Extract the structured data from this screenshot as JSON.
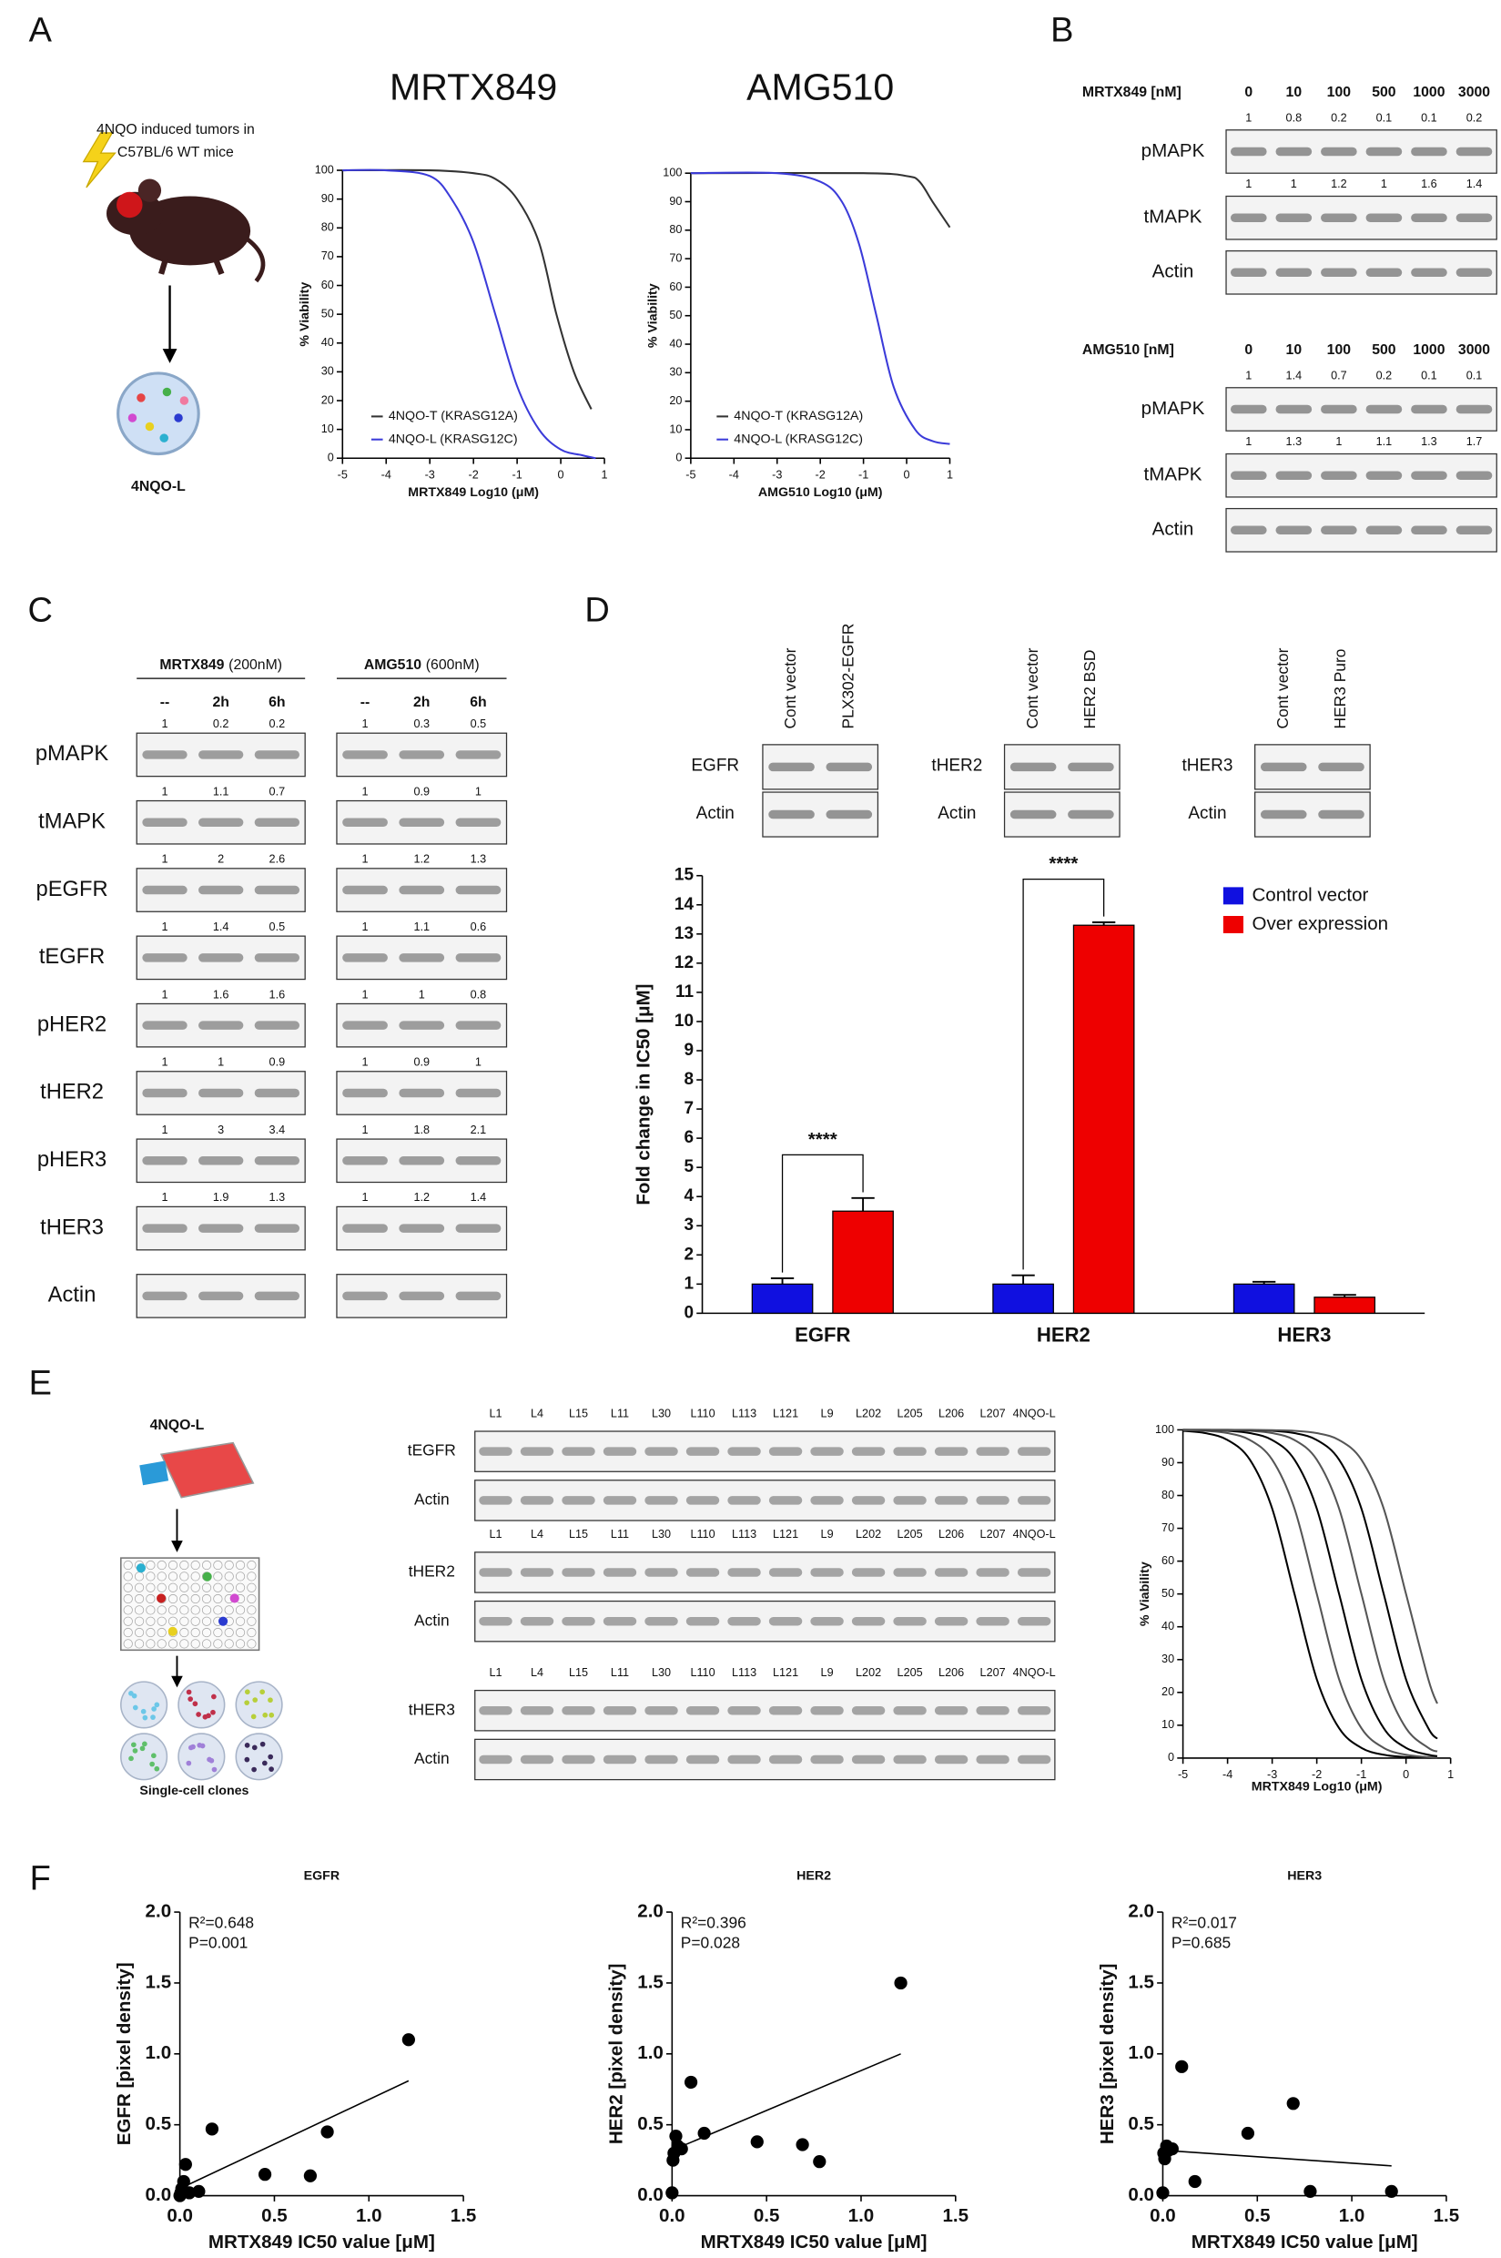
{
  "panel_labels": [
    "A",
    "B",
    "C",
    "D",
    "E",
    "F"
  ],
  "panel_a": {
    "model_text": [
      "4NQO induced tumors  in",
      "C57BL/6 WT mice"
    ],
    "cell_line": "4NQO-L"
  },
  "panel_b": {
    "blots": [
      {
        "drug": "MRTX849 [nM]",
        "doses": [
          0,
          10,
          100,
          500,
          1000,
          3000
        ],
        "rows": [
          {
            "label": "pMAPK",
            "quant": [
              1,
              0.8,
              0.2,
              0.1,
              0.1,
              0.2
            ]
          },
          {
            "label": "tMAPK",
            "quant": [
              1,
              1,
              1.2,
              1,
              1.6,
              1.4
            ]
          },
          {
            "label": "Actin"
          }
        ]
      },
      {
        "drug": "AMG510 [nM]",
        "doses": [
          0,
          10,
          100,
          500,
          1000,
          3000
        ],
        "rows": [
          {
            "label": "pMAPK",
            "quant": [
              1,
              1.4,
              0.7,
              0.2,
              0.1,
              0.1
            ]
          },
          {
            "label": "tMAPK",
            "quant": [
              1,
              1.3,
              1,
              1.1,
              1.3,
              1.7
            ]
          },
          {
            "label": "Actin"
          }
        ]
      }
    ]
  },
  "panel_c": {
    "treatments": [
      {
        "drug": "MRTX849",
        "dose": "(200nM)"
      },
      {
        "drug": "AMG510",
        "dose": "(600nM)"
      }
    ],
    "columns": [
      "--",
      "2h",
      "6h"
    ],
    "rows": [
      {
        "label": "pMAPK",
        "quant": [
          [
            1,
            0.2,
            0.2
          ],
          [
            1,
            0.3,
            0.5
          ]
        ]
      },
      {
        "label": "tMAPK",
        "quant": [
          [
            1,
            1.1,
            0.7
          ],
          [
            1,
            0.9,
            1
          ]
        ]
      },
      {
        "label": "pEGFR",
        "quant": [
          [
            1,
            2,
            2.6
          ],
          [
            1,
            1.2,
            1.3
          ]
        ]
      },
      {
        "label": "tEGFR",
        "quant": [
          [
            1,
            1.4,
            0.5
          ],
          [
            1,
            1.1,
            0.6
          ]
        ]
      },
      {
        "label": "pHER2",
        "quant": [
          [
            1,
            1.6,
            1.6
          ],
          [
            1,
            1,
            0.8
          ]
        ]
      },
      {
        "label": "tHER2",
        "quant": [
          [
            1,
            1,
            0.9
          ],
          [
            1,
            0.9,
            1
          ]
        ]
      },
      {
        "label": "pHER3",
        "quant": [
          [
            1,
            3,
            3.4
          ],
          [
            1,
            1.8,
            2.1
          ]
        ]
      },
      {
        "label": "tHER3",
        "quant": [
          [
            1,
            1.9,
            1.3
          ],
          [
            1,
            1.2,
            1.4
          ]
        ]
      },
      {
        "label": "Actin"
      }
    ]
  },
  "panel_d_blots": [
    {
      "lanes": [
        "Cont vector",
        "PLX302-EGFR"
      ],
      "rows": [
        "EGFR",
        "Actin"
      ]
    },
    {
      "lanes": [
        "Cont vector",
        "HER2 BSD"
      ],
      "rows": [
        "tHER2",
        "Actin"
      ]
    },
    {
      "lanes": [
        "Cont vector",
        "HER3 Puro"
      ],
      "rows": [
        "tHER3",
        "Actin"
      ]
    }
  ],
  "panel_e": {
    "title": "4NQO-L",
    "caption": "Single-cell clones",
    "lanes": [
      "L1",
      "L4",
      "L15",
      "L11",
      "L30",
      "L110",
      "L113",
      "L121",
      "L9",
      "L202",
      "L205",
      "L206",
      "L207",
      "4NQO-L"
    ],
    "blots": [
      [
        "tEGFR",
        "Actin"
      ],
      [
        "tHER2",
        "Actin"
      ],
      [
        "tHER3",
        "Actin"
      ]
    ]
  },
  "chart_data": [
    {
      "type": "line",
      "title": "MRTX849",
      "x_label": "MRTX849 Log10 (μM)",
      "y_label": "% Viability",
      "xlim": [
        -5,
        1
      ],
      "xticks": [
        -5,
        -4,
        -3,
        -2,
        -1,
        0,
        1
      ],
      "ylim": [
        0,
        100
      ],
      "yticks": [
        0,
        10,
        20,
        30,
        40,
        50,
        60,
        70,
        80,
        90,
        100
      ],
      "legend": "lower left",
      "series": [
        {
          "name": "4NQO-T (KRASG12A)",
          "color": "#333333",
          "x": [
            -5,
            -3,
            -2,
            -1.5,
            -1,
            -0.5,
            -0.1,
            0.3,
            0.7
          ],
          "values": [
            100,
            100,
            99,
            97,
            90,
            75,
            50,
            30,
            17
          ]
        },
        {
          "name": "4NQO-L (KRASG12C)",
          "color": "#3b3bd9",
          "x": [
            -5,
            -4,
            -3,
            -2.5,
            -2,
            -1.5,
            -1,
            -0.5,
            0,
            0.5,
            0.8
          ],
          "values": [
            100,
            100,
            98,
            90,
            75,
            50,
            25,
            10,
            3,
            1,
            0
          ]
        }
      ]
    },
    {
      "type": "line",
      "title": "AMG510",
      "x_label": "AMG510 Log10 (μM)",
      "y_label": "% Viability",
      "xlim": [
        -5,
        1
      ],
      "xticks": [
        -5,
        -4,
        -3,
        -2,
        -1,
        0,
        1
      ],
      "ylim": [
        0,
        100
      ],
      "yticks": [
        0,
        10,
        20,
        30,
        40,
        50,
        60,
        70,
        80,
        90,
        100
      ],
      "legend": "lower left",
      "series": [
        {
          "name": "4NQO-T (KRASG12A)",
          "color": "#333333",
          "x": [
            -5,
            -1,
            0,
            0.3,
            0.6,
            1
          ],
          "values": [
            100,
            100,
            99,
            97,
            90,
            81
          ]
        },
        {
          "name": "4NQO-L (KRASG12C)",
          "color": "#3b3bd9",
          "x": [
            -5,
            -3,
            -2,
            -1.5,
            -1.1,
            -0.7,
            -0.3,
            0.2,
            0.6,
            1
          ],
          "values": [
            100,
            100,
            97,
            90,
            75,
            50,
            25,
            10,
            6,
            5
          ]
        }
      ]
    },
    {
      "type": "bar",
      "y_label": "Fold change in IC50 [μM]",
      "categories": [
        "EGFR",
        "HER2",
        "HER3"
      ],
      "ylim": [
        0,
        15
      ],
      "yticks": [
        0,
        1,
        2,
        3,
        4,
        5,
        6,
        7,
        8,
        9,
        10,
        11,
        12,
        13,
        14,
        15
      ],
      "legend": "upper right",
      "significance": [
        "****",
        "****",
        null
      ],
      "series": [
        {
          "name": "Control vector",
          "color": "#1010e0",
          "values": [
            1,
            1,
            1
          ],
          "errors": [
            0.2,
            0.3,
            0.08
          ]
        },
        {
          "name": "Over expression",
          "color": "#ee0000",
          "values": [
            3.5,
            13.3,
            0.55
          ],
          "errors": [
            0.45,
            0.1,
            0.08
          ]
        }
      ]
    },
    {
      "type": "line",
      "x_label": "MRTX849 Log10 (μM)",
      "y_label": "% Viability",
      "xlim": [
        -5,
        1
      ],
      "xticks": [
        -5,
        -4,
        -3,
        -2,
        -1,
        0,
        1
      ],
      "ylim": [
        0,
        100
      ],
      "yticks": [
        0,
        10,
        20,
        30,
        40,
        50,
        60,
        70,
        80,
        90,
        100
      ],
      "x": [
        -5,
        -4.5,
        -4,
        -3.5,
        -3,
        -2.5,
        -2,
        -1.5,
        -1,
        -0.5,
        0,
        0.5,
        0.7
      ],
      "series": [
        {
          "color": "#000000",
          "values": [
            99.7,
            99.0,
            96.9,
            90.9,
            76.0,
            50,
            24.0,
            9.1,
            3.1,
            1.0,
            0.3,
            0.1,
            0.1
          ]
        },
        {
          "color": "#555555",
          "values": [
            99.9,
            99.7,
            99.0,
            96.9,
            90.9,
            76.0,
            50,
            24.0,
            9.1,
            3.1,
            1.0,
            0.3,
            0.2
          ]
        },
        {
          "color": "#000000",
          "values": [
            100,
            99.9,
            99.7,
            99.0,
            96.9,
            90.9,
            76.0,
            50,
            24.0,
            9.1,
            3.1,
            1.0,
            0.6
          ]
        },
        {
          "color": "#555555",
          "values": [
            100,
            100,
            99.9,
            99.7,
            99.0,
            96.9,
            90.9,
            76.0,
            50,
            24.0,
            9.1,
            3.1,
            2.0
          ]
        },
        {
          "color": "#000000",
          "values": [
            100,
            100,
            100,
            99.9,
            99.7,
            99.0,
            96.9,
            90.9,
            76.0,
            50,
            24.0,
            9.1,
            5.9
          ]
        },
        {
          "color": "#555555",
          "values": [
            100,
            100,
            100,
            100,
            99.9,
            99.7,
            99.0,
            96.9,
            90.9,
            76.0,
            50,
            24.0,
            16.6
          ]
        }
      ]
    },
    {
      "type": "scatter",
      "title": "EGFR",
      "x_label": "MRTX849 IC50 value [μM]",
      "y_label": "EGFR [pixel density]",
      "xlim": [
        0,
        1.5
      ],
      "xticks": [
        {
          "value": 0,
          "label": "0.0"
        },
        0.5,
        {
          "value": 1,
          "label": "1.0"
        },
        1.5
      ],
      "ylim": [
        0,
        2
      ],
      "yticks": [
        {
          "value": 0,
          "label": "0.0"
        },
        0.5,
        {
          "value": 1,
          "label": "1.0"
        },
        1.5,
        {
          "value": 2,
          "label": "2.0"
        }
      ],
      "annotations": [
        "R²=0.648",
        "P=0.001"
      ],
      "x": [
        0,
        0.005,
        0.01,
        0.02,
        0.03,
        0.05,
        0.1,
        0.17,
        0.45,
        0.69,
        0.78,
        1.21
      ],
      "values": [
        0,
        0.02,
        0.05,
        0.1,
        0.22,
        0.02,
        0.03,
        0.47,
        0.15,
        0.14,
        0.45,
        1.1
      ],
      "fit": {
        "x": [
          0,
          1.21
        ],
        "values": [
          0.05,
          0.81
        ]
      }
    },
    {
      "type": "scatter",
      "title": "HER2",
      "x_label": "MRTX849 IC50 value [μM]",
      "y_label": "HER2 [pixel density]",
      "xlim": [
        0,
        1.5
      ],
      "xticks": [
        {
          "value": 0,
          "label": "0.0"
        },
        0.5,
        {
          "value": 1,
          "label": "1.0"
        },
        1.5
      ],
      "ylim": [
        0,
        2
      ],
      "yticks": [
        {
          "value": 0,
          "label": "0.0"
        },
        0.5,
        {
          "value": 1,
          "label": "1.0"
        },
        1.5,
        {
          "value": 2,
          "label": "2.0"
        }
      ],
      "annotations": [
        "R²=0.396",
        "P=0.028"
      ],
      "x": [
        0,
        0.005,
        0.01,
        0.02,
        0.03,
        0.05,
        0.1,
        0.17,
        0.45,
        0.69,
        0.78,
        1.21
      ],
      "values": [
        0.02,
        0.25,
        0.3,
        0.42,
        0.35,
        0.33,
        0.8,
        0.44,
        0.38,
        0.36,
        0.24,
        1.5
      ],
      "fit": {
        "x": [
          0,
          1.21
        ],
        "values": [
          0.32,
          1.0
        ]
      }
    },
    {
      "type": "scatter",
      "title": "HER3",
      "x_label": "MRTX849 IC50 value [μM]",
      "y_label": "HER3 [pixel density]",
      "xlim": [
        0,
        1.5
      ],
      "xticks": [
        {
          "value": 0,
          "label": "0.0"
        },
        0.5,
        {
          "value": 1,
          "label": "1.0"
        },
        1.5
      ],
      "ylim": [
        0,
        2
      ],
      "yticks": [
        {
          "value": 0,
          "label": "0.0"
        },
        0.5,
        {
          "value": 1,
          "label": "1.0"
        },
        1.5,
        {
          "value": 2,
          "label": "2.0"
        }
      ],
      "annotations": [
        "R²=0.017",
        "P=0.685"
      ],
      "x": [
        0,
        0.005,
        0.01,
        0.02,
        0.03,
        0.05,
        0.1,
        0.17,
        0.45,
        0.69,
        0.78,
        1.21
      ],
      "values": [
        0.02,
        0.3,
        0.26,
        0.35,
        0.32,
        0.33,
        0.91,
        0.1,
        0.44,
        0.65,
        0.03,
        0.03
      ],
      "fit": {
        "x": [
          0,
          1.21
        ],
        "values": [
          0.32,
          0.21
        ]
      }
    }
  ]
}
